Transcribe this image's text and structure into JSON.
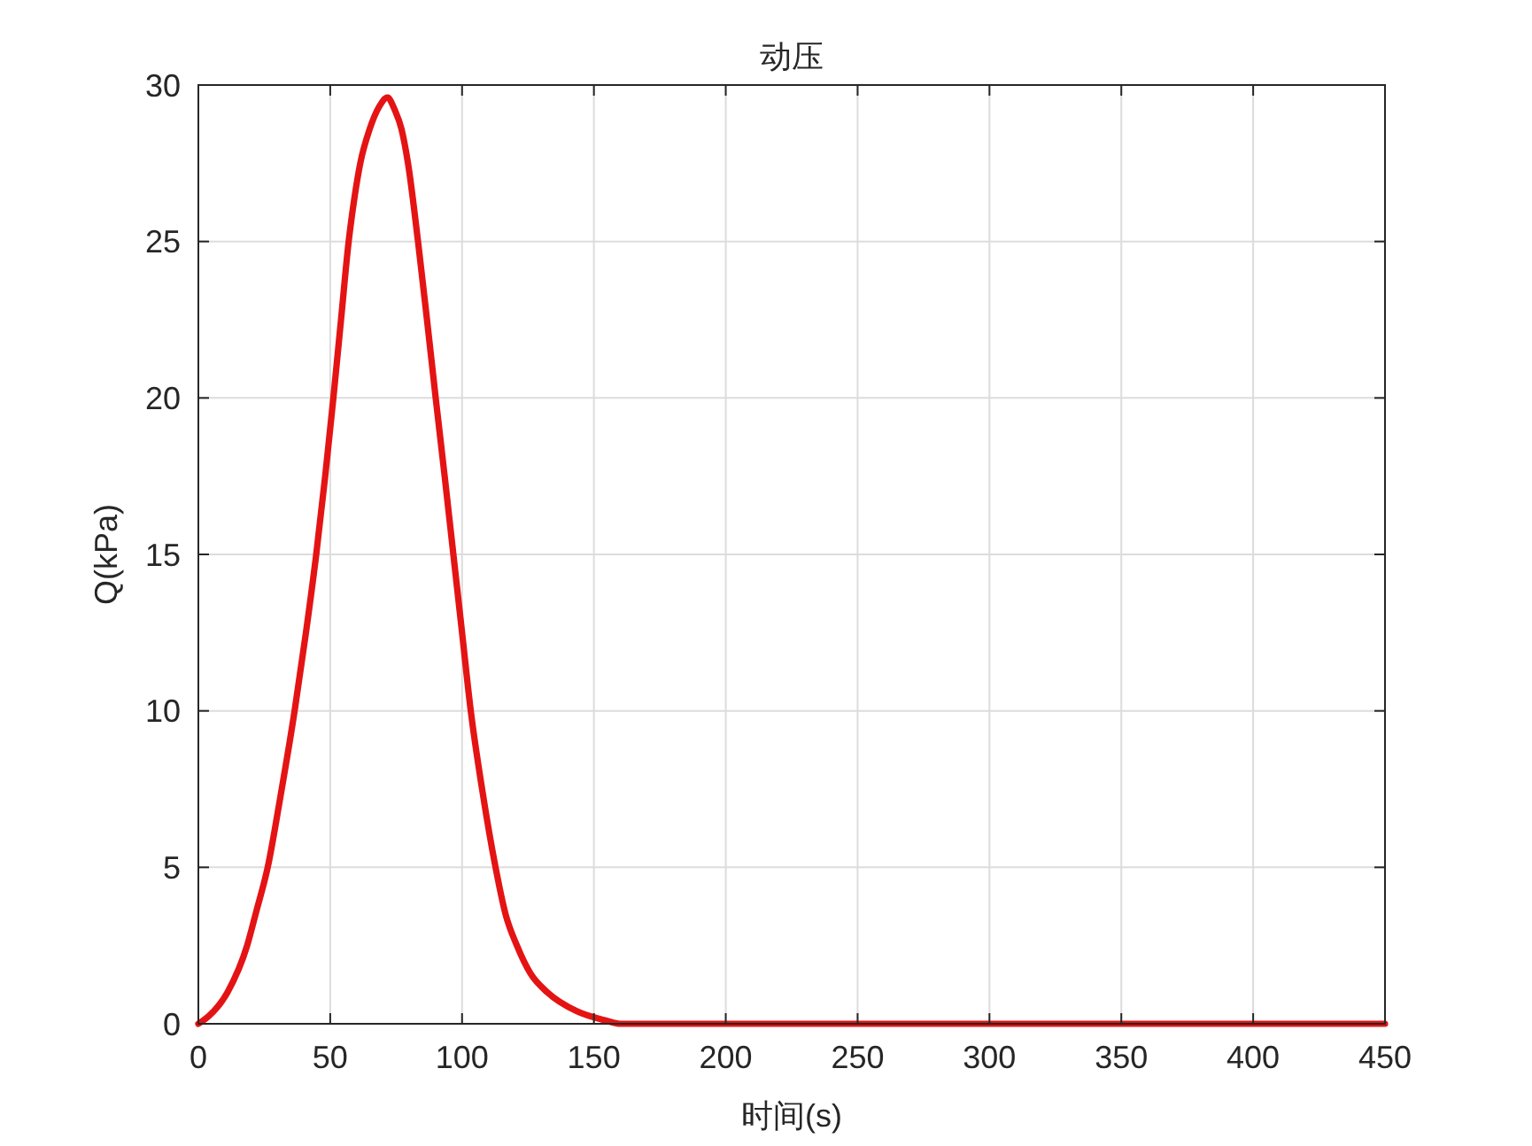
{
  "chart_data": {
    "type": "line",
    "title": "动压",
    "xlabel": "时间(s)",
    "ylabel": "Q(kPa)",
    "x": [
      0,
      4,
      11,
      18.5,
      22,
      26.3,
      31,
      36.5,
      40.8,
      44.7,
      48.1,
      51.2,
      54.1,
      57,
      59.2,
      61.4,
      65,
      68.5,
      71.7,
      74.5,
      77,
      79.5,
      83.3,
      86.7,
      90,
      93.4,
      96.7,
      100,
      103.3,
      107.6,
      112.7,
      116.5,
      120.8,
      126,
      132.4,
      143.5,
      154.7,
      160,
      200,
      450
    ],
    "series": [
      {
        "color": "#e41414",
        "values": [
          0,
          0.25,
          1.0,
          2.5,
          3.6,
          5.0,
          7.2,
          10.0,
          12.5,
          15.0,
          17.5,
          20.0,
          22.5,
          25.0,
          26.4,
          27.5,
          28.6,
          29.3,
          29.6,
          29.2,
          28.6,
          27.5,
          25.0,
          22.5,
          20.0,
          17.5,
          15.0,
          12.5,
          10.0,
          7.5,
          5.0,
          3.5,
          2.5,
          1.6,
          1.0,
          0.4,
          0.1,
          0,
          0,
          0
        ]
      }
    ],
    "xlim": [
      0,
      450
    ],
    "xticks": [
      0,
      50,
      100,
      150,
      200,
      250,
      300,
      350,
      400,
      450
    ],
    "ylim": [
      0,
      30
    ],
    "yticks": [
      0,
      5,
      10,
      15,
      20,
      25,
      30
    ],
    "grid": true,
    "line_style": "solid"
  }
}
